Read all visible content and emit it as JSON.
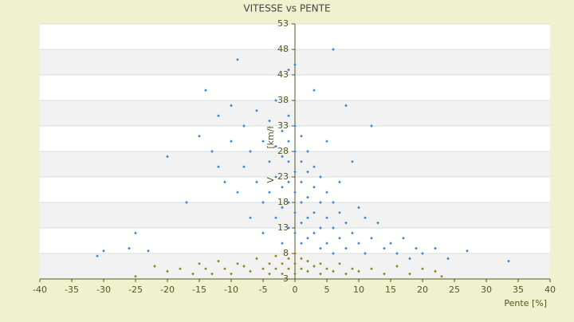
{
  "chart_data": {
    "type": "scatter",
    "title": "VITESSE vs PENTE",
    "x_label": "Pente [%]",
    "y_label": "Vitesse [km/h]",
    "xlim": [
      -40,
      40
    ],
    "xticks": [
      -40,
      -35,
      -30,
      -25,
      -20,
      -15,
      -10,
      -5,
      0,
      5,
      10,
      15,
      20,
      25,
      30,
      35,
      40
    ],
    "ylim": [
      3,
      53
    ],
    "yticks": [
      3,
      8,
      13,
      18,
      23,
      28,
      33,
      38,
      43,
      48,
      53
    ],
    "grid": true,
    "series": [
      {
        "color": "#3a86d8",
        "x": [
          -31,
          -30,
          -26,
          -25,
          -23,
          -20,
          -17,
          -15,
          -14,
          -13,
          -12,
          -12,
          -11,
          -10,
          -10,
          -9,
          -9,
          -8,
          -8,
          -7,
          -7,
          -6,
          -6,
          -5,
          -5,
          -5,
          -4,
          -4,
          -4,
          -3,
          -3,
          -3,
          -3,
          -2,
          -2,
          -2,
          -2,
          -2,
          -1,
          -1,
          -1,
          -1,
          -1,
          -1,
          -1,
          0,
          0,
          0,
          0,
          0,
          0,
          0,
          1,
          1,
          1,
          1,
          1,
          1,
          2,
          2,
          2,
          2,
          2,
          3,
          3,
          3,
          3,
          3,
          4,
          4,
          4,
          4,
          5,
          5,
          5,
          5,
          6,
          6,
          6,
          6,
          7,
          7,
          7,
          8,
          8,
          8,
          9,
          9,
          10,
          10,
          11,
          11,
          12,
          12,
          13,
          14,
          15,
          16,
          17,
          18,
          19,
          20,
          22,
          24,
          27,
          33.5
        ],
        "values": [
          7.5,
          8.5,
          9,
          12,
          8.5,
          27,
          18,
          31,
          40,
          28,
          25,
          35,
          22,
          37,
          30,
          46,
          20,
          33,
          25,
          15,
          28,
          36,
          22,
          30,
          18,
          12,
          34,
          26,
          20,
          38,
          29,
          23,
          15,
          32,
          27,
          21,
          17,
          10,
          44,
          35,
          30,
          26,
          22,
          18,
          13,
          45,
          33,
          28,
          24,
          20,
          16,
          12,
          31,
          26,
          22,
          18,
          14,
          10,
          28,
          24,
          19,
          15,
          11,
          40,
          25,
          21,
          16,
          12,
          23,
          18,
          13,
          9,
          30,
          20,
          15,
          10,
          48,
          18,
          13,
          8,
          22,
          16,
          11,
          37,
          14,
          9,
          26,
          12,
          17,
          10,
          15,
          8,
          33,
          11,
          14,
          9,
          10,
          8,
          11,
          7,
          9,
          8,
          9,
          7,
          8.5,
          6.5
        ]
      },
      {
        "color": "#8a8a10",
        "x": [
          -25,
          -22,
          -20,
          -18,
          -16,
          -15,
          -14,
          -13,
          -12,
          -11,
          -10,
          -9,
          -8,
          -7,
          -6,
          -5,
          -4,
          -4,
          -3,
          -3,
          -2,
          -2,
          -1,
          -1,
          0,
          0,
          0,
          1,
          1,
          2,
          2,
          3,
          4,
          4,
          5,
          6,
          7,
          8,
          9,
          10,
          12,
          14,
          16,
          18,
          20,
          22,
          23
        ],
        "values": [
          3.5,
          5.5,
          4.5,
          5,
          4,
          6,
          5,
          4,
          6.5,
          5,
          4,
          6,
          5.5,
          4.5,
          7,
          5,
          6,
          4,
          7.5,
          5,
          6,
          4,
          7,
          5,
          8,
          6,
          4,
          7,
          5,
          6.5,
          4.5,
          5.5,
          6,
          4,
          5,
          4.5,
          6,
          4,
          5,
          4.5,
          5,
          4,
          5.5,
          4,
          5,
          4.5,
          3.5
        ]
      }
    ]
  }
}
